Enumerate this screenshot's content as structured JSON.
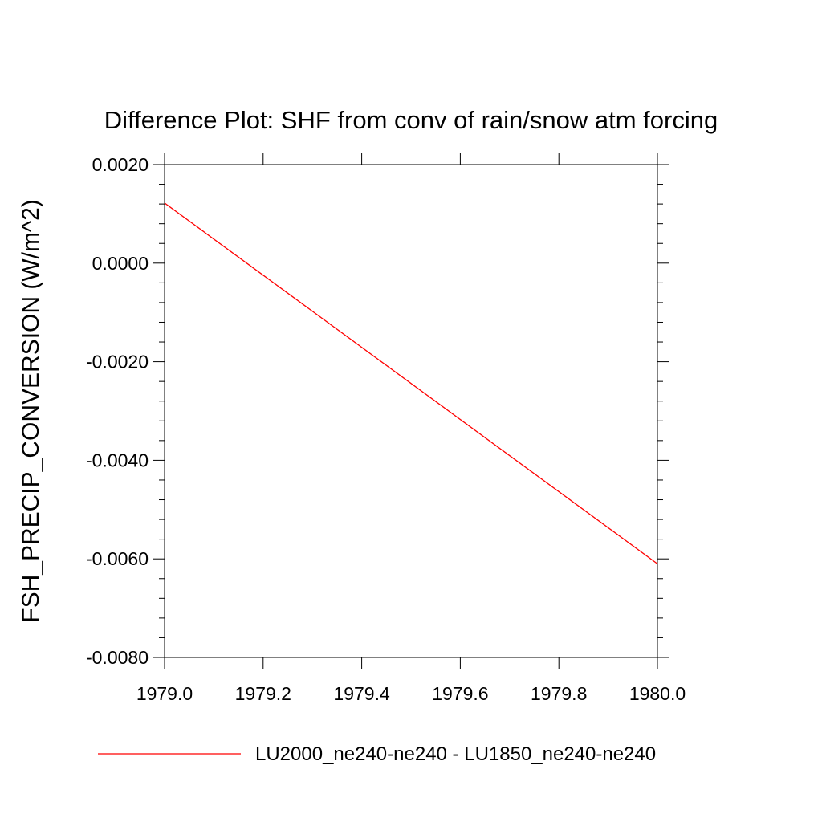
{
  "chart_data": {
    "type": "line",
    "title": "Difference Plot: SHF from conv of rain/snow atm forcing",
    "xlabel": "",
    "ylabel": "FSH_PRECIP_CONVERSION  (W/m^2)",
    "xlim": [
      1979.0,
      1980.0
    ],
    "ylim": [
      -0.008,
      0.002
    ],
    "x_ticks": [
      "1979.0",
      "1979.2",
      "1979.4",
      "1979.6",
      "1979.8",
      "1980.0"
    ],
    "y_ticks": [
      "0.0020",
      "0.0000",
      "-0.0020",
      "-0.0040",
      "-0.0060",
      "-0.0080"
    ],
    "grid": false,
    "legend_position": "bottom",
    "series": [
      {
        "name": "LU2000_ne240-ne240 - LU1850_ne240-ne240",
        "color": "#ff0000",
        "x": [
          1979.0,
          1980.0
        ],
        "y": [
          0.00122,
          -0.0061
        ]
      }
    ]
  }
}
